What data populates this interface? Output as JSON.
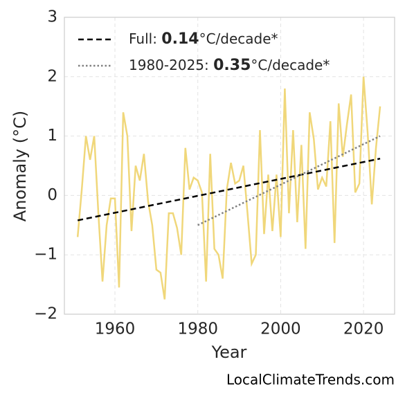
{
  "chart_data": {
    "type": "line",
    "xlabel": "Year",
    "ylabel": "Anomaly (°C)",
    "source": "LocalClimateTrends.com",
    "xlim": [
      1947.8,
      2027.5
    ],
    "xticks": [
      1960,
      1980,
      2000,
      2020
    ],
    "ylim": [
      -2,
      3
    ],
    "yticks": [
      {
        "value": -2,
        "label": "−2"
      },
      {
        "value": -1,
        "label": "−1"
      },
      0,
      1,
      2,
      3
    ],
    "grid": true,
    "legend": "upper left",
    "series": [
      {
        "color": "#f0d77a",
        "style": "solid",
        "x": [
          1951,
          1952,
          1953,
          1954,
          1955,
          1956,
          1957,
          1958,
          1959,
          1960,
          1961,
          1962,
          1963,
          1964,
          1965,
          1966,
          1967,
          1968,
          1969,
          1970,
          1971,
          1972,
          1973,
          1974,
          1975,
          1976,
          1977,
          1978,
          1979,
          1980,
          1981,
          1982,
          1983,
          1984,
          1985,
          1986,
          1987,
          1988,
          1989,
          1990,
          1991,
          1992,
          1993,
          1994,
          1995,
          1996,
          1997,
          1998,
          1999,
          2000,
          2001,
          2002,
          2003,
          2004,
          2005,
          2006,
          2007,
          2008,
          2009,
          2010,
          2011,
          2012,
          2013,
          2014,
          2015,
          2016,
          2017,
          2018,
          2019,
          2020,
          2021,
          2022,
          2023,
          2024
        ],
        "values": [
          -0.7,
          0.1,
          1.0,
          0.6,
          1.0,
          -0.3,
          -1.45,
          -0.5,
          -0.05,
          -0.05,
          -1.55,
          1.4,
          1.0,
          -0.6,
          0.5,
          0.25,
          0.7,
          -0.1,
          -0.5,
          -1.25,
          -1.3,
          -1.75,
          -0.3,
          -0.3,
          -0.55,
          -1.0,
          0.8,
          0.1,
          0.3,
          0.25,
          0.05,
          -1.45,
          0.7,
          -0.9,
          -1.0,
          -1.4,
          0.1,
          0.55,
          0.2,
          0.25,
          0.5,
          -0.3,
          -1.15,
          -1.0,
          1.1,
          -0.65,
          0.35,
          -0.6,
          0.35,
          -0.7,
          1.8,
          -0.3,
          1.1,
          -0.45,
          0.85,
          -0.9,
          1.4,
          0.95,
          0.1,
          0.3,
          0.15,
          1.25,
          -0.8,
          1.55,
          0.65,
          1.2,
          1.7,
          0.05,
          0.2,
          2.0,
          1.05,
          -0.15,
          0.8,
          1.5
        ]
      },
      {
        "name": [
          "Full: ",
          "0.14",
          "°C/decade*"
        ],
        "color": "#000000",
        "style": "dashed",
        "x": [
          1951,
          2024
        ],
        "values": [
          -0.42,
          0.62
        ]
      },
      {
        "name": [
          "1980-2025: ",
          "0.35",
          "°C/decade*"
        ],
        "color": "#808080",
        "style": "dotted",
        "x": [
          1980,
          2024
        ],
        "values": [
          -0.5,
          1.0
        ]
      }
    ]
  }
}
